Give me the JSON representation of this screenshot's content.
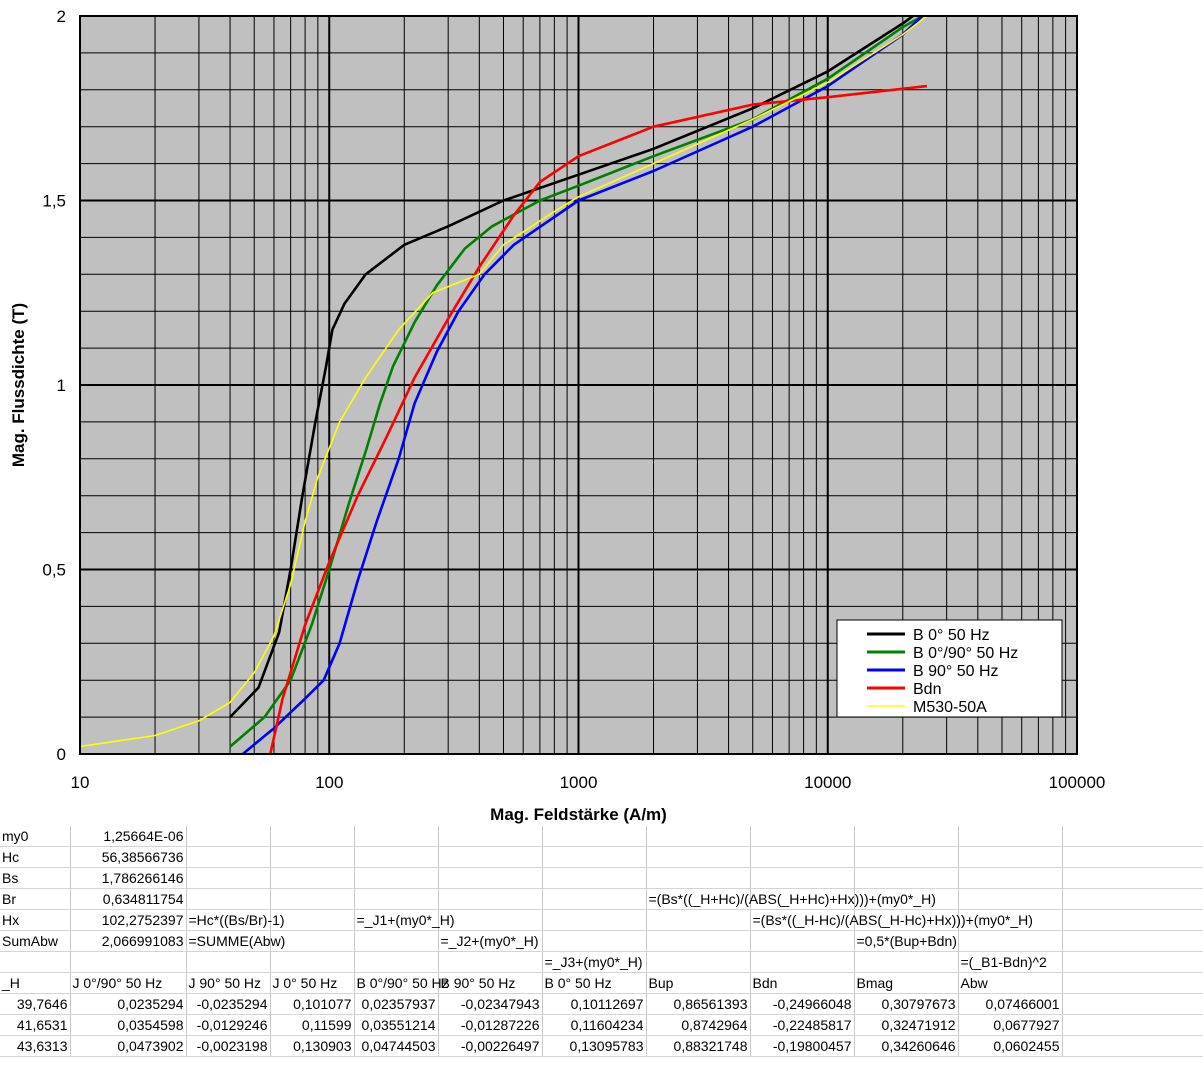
{
  "chart_data": {
    "type": "line",
    "xlabel": "Mag. Feldstärke (A/m)",
    "ylabel": "Mag. Flussdichte (T)",
    "xscale": "log",
    "xlim": [
      10,
      100000
    ],
    "ylim": [
      0,
      2
    ],
    "x_ticks": [
      "10",
      "100",
      "1000",
      "10000",
      "100000"
    ],
    "y_ticks": [
      "0",
      "0,5",
      "1",
      "1,5",
      "2"
    ],
    "grid": true,
    "legend_position": "bottom-right",
    "colors": {
      "plot_bg": "#c0c0c0",
      "grid": "#000000"
    },
    "series": [
      {
        "name": "B 0° 50 Hz",
        "color": "#000000",
        "points": [
          [
            40,
            0.1
          ],
          [
            52,
            0.18
          ],
          [
            63,
            0.33
          ],
          [
            70,
            0.5
          ],
          [
            78,
            0.7
          ],
          [
            88,
            0.9
          ],
          [
            97,
            1.05
          ],
          [
            103,
            1.15
          ],
          [
            115,
            1.22
          ],
          [
            140,
            1.3
          ],
          [
            200,
            1.38
          ],
          [
            300,
            1.43
          ],
          [
            500,
            1.5
          ],
          [
            1000,
            1.57
          ],
          [
            2000,
            1.64
          ],
          [
            5000,
            1.75
          ],
          [
            10000,
            1.85
          ],
          [
            20000,
            1.98
          ],
          [
            22000,
            2.0
          ]
        ]
      },
      {
        "name": "B 0°/90° 50 Hz",
        "color": "#008000",
        "points": [
          [
            40,
            0.02
          ],
          [
            55,
            0.1
          ],
          [
            70,
            0.2
          ],
          [
            85,
            0.35
          ],
          [
            100,
            0.5
          ],
          [
            120,
            0.68
          ],
          [
            140,
            0.82
          ],
          [
            160,
            0.95
          ],
          [
            180,
            1.05
          ],
          [
            220,
            1.17
          ],
          [
            270,
            1.27
          ],
          [
            350,
            1.37
          ],
          [
            450,
            1.43
          ],
          [
            700,
            1.5
          ],
          [
            1000,
            1.54
          ],
          [
            2000,
            1.62
          ],
          [
            5000,
            1.72
          ],
          [
            10000,
            1.83
          ],
          [
            20000,
            1.97
          ],
          [
            24000,
            2.0
          ]
        ]
      },
      {
        "name": "B 90° 50 Hz",
        "color": "#0000ff",
        "points": [
          [
            45,
            0.0
          ],
          [
            60,
            0.07
          ],
          [
            80,
            0.15
          ],
          [
            95,
            0.2
          ],
          [
            110,
            0.3
          ],
          [
            130,
            0.47
          ],
          [
            155,
            0.63
          ],
          [
            190,
            0.8
          ],
          [
            220,
            0.95
          ],
          [
            270,
            1.09
          ],
          [
            330,
            1.2
          ],
          [
            420,
            1.3
          ],
          [
            550,
            1.38
          ],
          [
            1000,
            1.5
          ],
          [
            2000,
            1.58
          ],
          [
            5000,
            1.7
          ],
          [
            10000,
            1.81
          ],
          [
            20000,
            1.95
          ],
          [
            24000,
            2.0
          ]
        ]
      },
      {
        "name": "Bdn",
        "color": "#ff0000",
        "points": [
          [
            58,
            0.0
          ],
          [
            65,
            0.15
          ],
          [
            80,
            0.35
          ],
          [
            100,
            0.52
          ],
          [
            130,
            0.7
          ],
          [
            170,
            0.86
          ],
          [
            220,
            1.02
          ],
          [
            300,
            1.18
          ],
          [
            400,
            1.32
          ],
          [
            550,
            1.46
          ],
          [
            700,
            1.55
          ],
          [
            1000,
            1.62
          ],
          [
            2000,
            1.7
          ],
          [
            5000,
            1.76
          ],
          [
            10000,
            1.78
          ],
          [
            25000,
            1.81
          ]
        ]
      },
      {
        "name": "M530-50A",
        "color": "#ffff00",
        "points": [
          [
            10,
            0.02
          ],
          [
            20,
            0.05
          ],
          [
            30,
            0.09
          ],
          [
            40,
            0.14
          ],
          [
            50,
            0.22
          ],
          [
            60,
            0.32
          ],
          [
            70,
            0.46
          ],
          [
            80,
            0.63
          ],
          [
            90,
            0.75
          ],
          [
            110,
            0.9
          ],
          [
            140,
            1.02
          ],
          [
            190,
            1.15
          ],
          [
            260,
            1.25
          ],
          [
            400,
            1.3
          ],
          [
            500,
            1.38
          ],
          [
            800,
            1.47
          ],
          [
            1000,
            1.51
          ],
          [
            2000,
            1.6
          ],
          [
            5000,
            1.72
          ],
          [
            10000,
            1.82
          ],
          [
            20000,
            1.95
          ],
          [
            25000,
            2.0
          ]
        ]
      }
    ]
  },
  "sheet": {
    "column_widths": [
      70,
      116,
      84,
      84,
      84,
      104,
      104,
      104,
      104,
      104,
      104,
      141
    ],
    "rows": [
      [
        "my0",
        "1,25664E-06",
        "",
        "",
        "",
        "",
        "",
        "",
        "",
        "",
        "",
        ""
      ],
      [
        "Hc",
        "56,38566736",
        "",
        "",
        "",
        "",
        "",
        "",
        "",
        "",
        "",
        ""
      ],
      [
        "Bs",
        "1,786266146",
        "",
        "",
        "",
        "",
        "",
        "",
        "",
        "",
        "",
        ""
      ],
      [
        "Br",
        "0,634811754",
        "",
        "",
        "",
        "",
        "",
        "=(Bs*((_H+Hc)/(ABS(_H+Hc)+Hx)))+(my0*_H)",
        "",
        "",
        "",
        ""
      ],
      [
        "Hx",
        "102,2752397",
        "=Hc*((Bs/Br)-1)",
        "",
        "=_J1+(my0*_H)",
        "",
        "",
        "",
        "=(Bs*((_H-Hc)/(ABS(_H-Hc)+Hx)))+(my0*_H)",
        "",
        "",
        ""
      ],
      [
        "SumAbw",
        "2,066991083",
        "=SUMME(Abw)",
        "",
        "",
        "=_J2+(my0*_H)",
        "",
        "",
        "",
        "=0,5*(Bup+Bdn)",
        "",
        ""
      ],
      [
        "",
        "",
        "",
        "",
        "",
        "",
        "=_J3+(my0*_H)",
        "",
        "",
        "",
        "=(_B1-Bdn)^2",
        ""
      ],
      [
        "_H",
        "J 0°/90° 50 Hz",
        "J 90° 50 Hz",
        "J 0° 50 Hz",
        "B 0°/90° 50 Hz",
        "B 90° 50 Hz",
        "B 0° 50 Hz",
        "Bup",
        "Bdn",
        "Bmag",
        "Abw",
        ""
      ],
      [
        "39,7646",
        "0,0235294",
        "-0,0235294",
        "0,101077",
        "0,02357937",
        "-0,02347943",
        "0,10112697",
        "0,86561393",
        "-0,24966048",
        "0,30797673",
        "0,07466001",
        ""
      ],
      [
        "41,6531",
        "0,0354598",
        "-0,0129246",
        "0,11599",
        "0,03551214",
        "-0,01287226",
        "0,11604234",
        "0,8742964",
        "-0,22485817",
        "0,32471912",
        "0,0677927",
        ""
      ],
      [
        "43,6313",
        "0,0473902",
        "-0,0023198",
        "0,130903",
        "0,04744503",
        "-0,00226497",
        "0,13095783",
        "0,88321748",
        "-0,19800457",
        "0,34260646",
        "0,0602455",
        ""
      ]
    ],
    "numeric_rows": [
      0,
      1,
      2,
      3,
      4,
      5,
      8,
      9,
      10
    ]
  }
}
